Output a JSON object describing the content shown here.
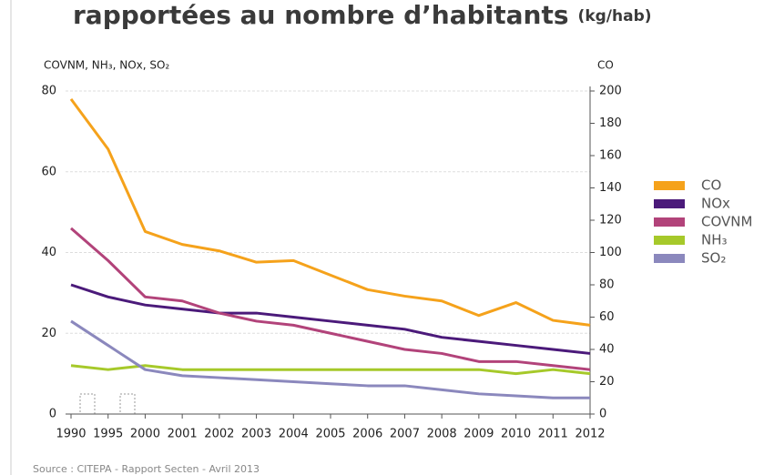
{
  "chart_data": {
    "type": "line",
    "title": "rapportées au nombre d’habitants",
    "subtitle": "(kg/hab)",
    "y_label": "COVNM, NH₃, NOx, SO₂",
    "y2_label": "CO",
    "source": "Source : CITEPA - Rapport Secten - Avril 2013",
    "categories": [
      "1990",
      "1995",
      "2000",
      "2001",
      "2002",
      "2003",
      "2004",
      "2005",
      "2006",
      "2007",
      "2008",
      "2009",
      "2010",
      "2011",
      "2012"
    ],
    "series": [
      {
        "name": "CO",
        "color": "#f5a21b",
        "axis": "y2",
        "values": [
          195,
          164,
          113,
          105,
          101,
          94,
          95,
          86,
          77,
          73,
          70,
          61,
          69,
          58,
          55
        ]
      },
      {
        "name": "NOx",
        "color": "#4b1a7a",
        "values": [
          32,
          29,
          27,
          26,
          25,
          25,
          24,
          23,
          22,
          21,
          19,
          18,
          17,
          16,
          15
        ]
      },
      {
        "name": "COVNM",
        "color": "#b2437a",
        "values": [
          46,
          38,
          29,
          28,
          25,
          23,
          22,
          20,
          18,
          16,
          15,
          13,
          13,
          12,
          11
        ]
      },
      {
        "name": "NH₃",
        "color": "#a6c92a",
        "values": [
          12,
          11,
          12,
          11,
          11,
          11,
          11,
          11,
          11,
          11,
          11,
          11,
          10,
          11,
          10
        ]
      },
      {
        "name": "SO₂",
        "color": "#8b88bd",
        "values": [
          23,
          17,
          11,
          9.5,
          9,
          8.5,
          8,
          7.5,
          7,
          7,
          6,
          5,
          4.5,
          4,
          4
        ]
      }
    ],
    "ylim": [
      0,
      80
    ],
    "yticks": [
      0,
      20,
      40,
      60,
      80
    ],
    "y2lim": [
      0,
      200
    ],
    "y2ticks": [
      0,
      20,
      40,
      60,
      80,
      100,
      120,
      140,
      160,
      180,
      200
    ],
    "grid": true,
    "legend": "right"
  }
}
